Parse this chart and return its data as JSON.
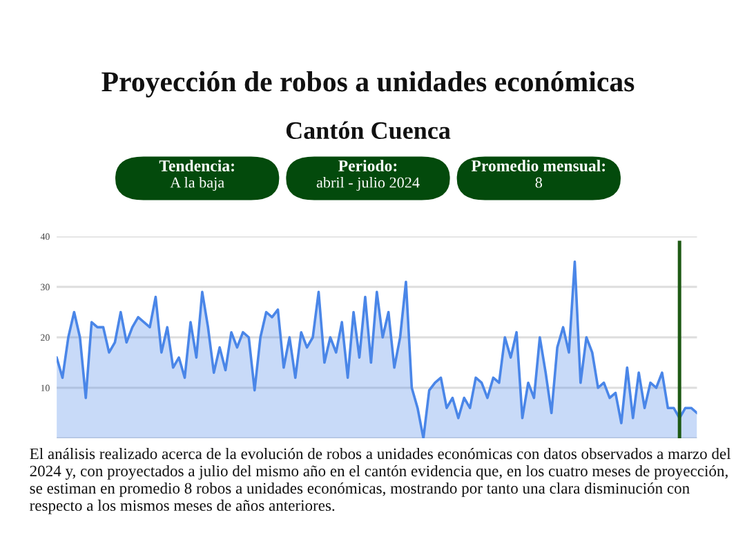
{
  "chart_data": {
    "type": "area",
    "title": "Proyección de robos a unidades económicas",
    "subtitle": "Cantón Cuenca",
    "annotations": [
      "Tendencia:",
      "A la baja",
      "Periodo:",
      "abril - julio 2024",
      "Promedio mensual:",
      "8",
      "El análisis realizado acerca de la evolución de robos a unidades económicas con datos observados a marzo del 2024 y, con proyectados a julio del mismo año en el cantón evidencia que, en los cuatro meses de proyección, se estiman en promedio 8 robos a unidades económicas, mostrando por tanto una clara disminución con respecto a los mismos meses de años anteriores."
    ],
    "categories": [
      null,
      null,
      null,
      null,
      null,
      null,
      null,
      null,
      null,
      null,
      null,
      null,
      null,
      null,
      null,
      null,
      null,
      null,
      null,
      null,
      null,
      null,
      null,
      null,
      null,
      null,
      null,
      null,
      null,
      null,
      null,
      null,
      null,
      null,
      null,
      null,
      null,
      null,
      null,
      null,
      null,
      null,
      null,
      null,
      null,
      null,
      null,
      null,
      null,
      null,
      null,
      null,
      null,
      null,
      null,
      null,
      null,
      null,
      null,
      null,
      null,
      null,
      null,
      null,
      null,
      null,
      null,
      null,
      null,
      null,
      null,
      null,
      null,
      null,
      null,
      null,
      null,
      null,
      null,
      null,
      null,
      null,
      null,
      null,
      null,
      null,
      null,
      null,
      null,
      null,
      null,
      null,
      null,
      null,
      null,
      null,
      null,
      null,
      null,
      null,
      null,
      null,
      null,
      null,
      null,
      null,
      null,
      null,
      null,
      null,
      null
    ],
    "series": [
      {
        "color": "#4a86e8",
        "values": [
          16,
          12,
          20,
          25,
          20,
          8,
          23,
          22,
          22,
          17,
          19,
          25,
          19,
          22,
          24,
          23,
          22,
          28,
          17,
          22,
          14,
          16,
          12,
          23,
          16,
          29,
          22,
          13,
          18,
          13.5,
          21,
          18,
          21,
          20,
          9.5,
          20,
          25,
          24,
          25.5,
          14,
          20,
          12,
          21,
          18,
          20,
          29,
          15,
          20,
          17,
          23,
          12,
          25,
          16,
          28,
          15,
          29,
          20,
          25,
          14,
          20,
          31,
          10,
          6,
          0,
          9.5,
          11,
          12,
          6,
          8,
          4,
          8,
          6,
          12,
          11,
          8,
          12,
          11,
          20,
          16,
          21,
          4,
          11,
          8,
          20,
          13,
          5,
          18,
          22,
          17,
          35,
          11,
          20,
          17,
          10,
          11,
          8,
          9,
          3,
          14,
          4,
          13,
          6,
          11,
          10,
          13,
          6,
          6,
          4,
          6,
          6,
          5
        ]
      }
    ],
    "ylim": [
      0,
      40
    ],
    "yticks": [
      {
        "value": 0,
        "label": null
      },
      10,
      20,
      30,
      40
    ],
    "grid": "y",
    "tick_labels": "y"
  }
}
